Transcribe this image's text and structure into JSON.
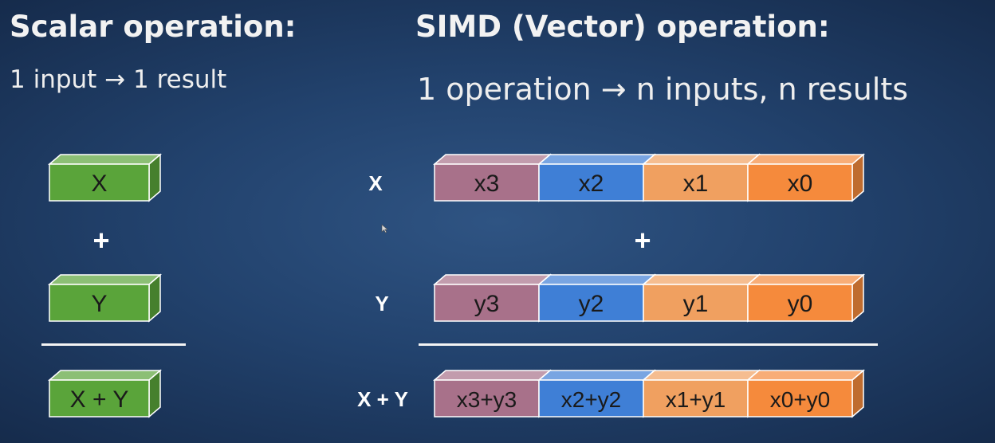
{
  "scalar": {
    "title": "Scalar operation:",
    "subtitle": "1 input → 1 result",
    "x_label": "X",
    "plus": "+",
    "y_label": "Y",
    "result_label": "X + Y",
    "color": "#5aa43a"
  },
  "simd": {
    "title": "SIMD (Vector) operation:",
    "subtitle": "1 operation → n inputs, n results",
    "row_labels": {
      "x": "X",
      "y": "Y",
      "sum": "X + Y"
    },
    "plus": "+",
    "x_cells": [
      "x3",
      "x2",
      "x1",
      "x0"
    ],
    "y_cells": [
      "y3",
      "y2",
      "y1",
      "y0"
    ],
    "sum_cells": [
      "x3+y3",
      "x2+y2",
      "x1+y1",
      "x0+y0"
    ],
    "cell_colors": [
      "#a8718a",
      "#3f7fd6",
      "#f0a060",
      "#f58a3c"
    ],
    "cell_icons": [
      "box-3d-icon"
    ]
  }
}
